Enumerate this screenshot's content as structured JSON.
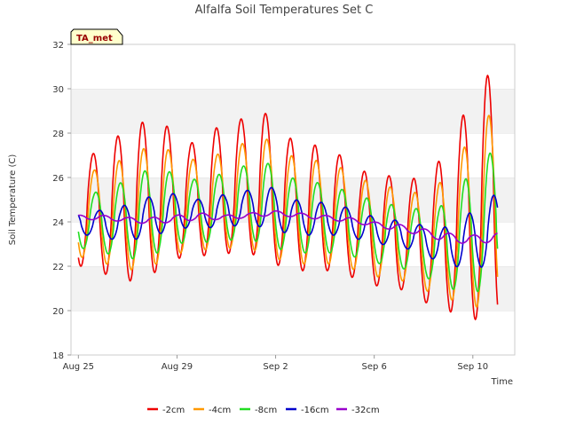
{
  "chart_data": {
    "type": "line",
    "title": "Alfalfa Soil Temperatures Set C",
    "xlabel": "Time",
    "ylabel": "Soil Temperature (C)",
    "ylim": [
      18,
      32
    ],
    "y_ticks": [
      18,
      20,
      22,
      24,
      26,
      28,
      30,
      32
    ],
    "x_range": [
      "Aug 25",
      "Sep 11"
    ],
    "x_ticks": [
      {
        "label": "Aug 25",
        "day": 0
      },
      {
        "label": "Aug 29",
        "day": 4
      },
      {
        "label": "Sep 2",
        "day": 8
      },
      {
        "label": "Sep 6",
        "day": 12
      },
      {
        "label": "Sep 10",
        "day": 16
      }
    ],
    "grid": "alternating horizontal bands",
    "legend_position": "bottom",
    "annotation": "TA_met",
    "colors": {
      "-2cm": "#ee0000",
      "-4cm": "#ff9900",
      "-8cm": "#22dd22",
      "-16cm": "#0000cc",
      "-32cm": "#9900cc"
    },
    "series": [
      {
        "name": "-2cm",
        "daily_max": [
          27.0,
          27.8,
          28.5,
          28.4,
          27.5,
          28.2,
          28.6,
          29.0,
          27.8,
          27.5,
          27.1,
          26.3,
          26.1,
          25.9,
          26.5,
          28.6,
          30.6
        ],
        "daily_min": [
          22.0,
          21.4,
          21.3,
          22.0,
          22.6,
          22.4,
          22.7,
          22.4,
          21.8,
          21.8,
          21.8,
          21.3,
          21.0,
          20.9,
          20.0,
          19.9,
          19.4
        ]
      },
      {
        "name": "-4cm",
        "daily_max": [
          26.3,
          26.7,
          27.3,
          27.3,
          26.8,
          27.0,
          27.5,
          27.8,
          27.0,
          26.8,
          26.5,
          25.9,
          25.6,
          25.3,
          25.6,
          27.2,
          28.8
        ],
        "daily_min": [
          22.4,
          21.9,
          21.8,
          22.3,
          22.8,
          22.7,
          22.9,
          22.6,
          22.1,
          22.1,
          22.1,
          21.7,
          21.4,
          21.3,
          20.6,
          20.4,
          20.0
        ]
      },
      {
        "name": "-8cm",
        "daily_max": [
          25.3,
          25.7,
          26.3,
          26.3,
          25.9,
          26.1,
          26.5,
          26.7,
          26.0,
          25.8,
          25.5,
          25.1,
          24.8,
          24.6,
          24.6,
          25.8,
          27.1
        ],
        "daily_min": [
          22.8,
          22.4,
          22.3,
          22.8,
          23.2,
          23.0,
          23.3,
          23.0,
          22.6,
          22.6,
          22.6,
          22.3,
          22.0,
          21.8,
          21.2,
          20.8,
          20.9
        ]
      },
      {
        "name": "-16cm",
        "daily_max": [
          24.5,
          24.7,
          25.1,
          25.3,
          25.0,
          25.2,
          25.4,
          25.6,
          25.0,
          24.9,
          24.7,
          24.3,
          24.1,
          23.9,
          23.7,
          24.3,
          25.2
        ],
        "daily_min": [
          23.4,
          23.1,
          23.3,
          23.6,
          23.8,
          23.7,
          23.9,
          23.7,
          23.4,
          23.4,
          23.4,
          23.1,
          22.9,
          22.7,
          22.1,
          21.9,
          22.0
        ]
      },
      {
        "name": "-32cm",
        "daily_max": [
          24.3,
          24.2,
          24.2,
          24.3,
          24.4,
          24.3,
          24.4,
          24.5,
          24.4,
          24.3,
          24.2,
          24.0,
          23.9,
          23.7,
          23.5,
          23.4,
          23.5
        ],
        "daily_min": [
          24.1,
          24.0,
          23.9,
          24.0,
          24.1,
          24.1,
          24.2,
          24.3,
          24.2,
          24.1,
          24.0,
          23.8,
          23.6,
          23.4,
          23.1,
          23.0,
          23.1
        ]
      }
    ]
  }
}
